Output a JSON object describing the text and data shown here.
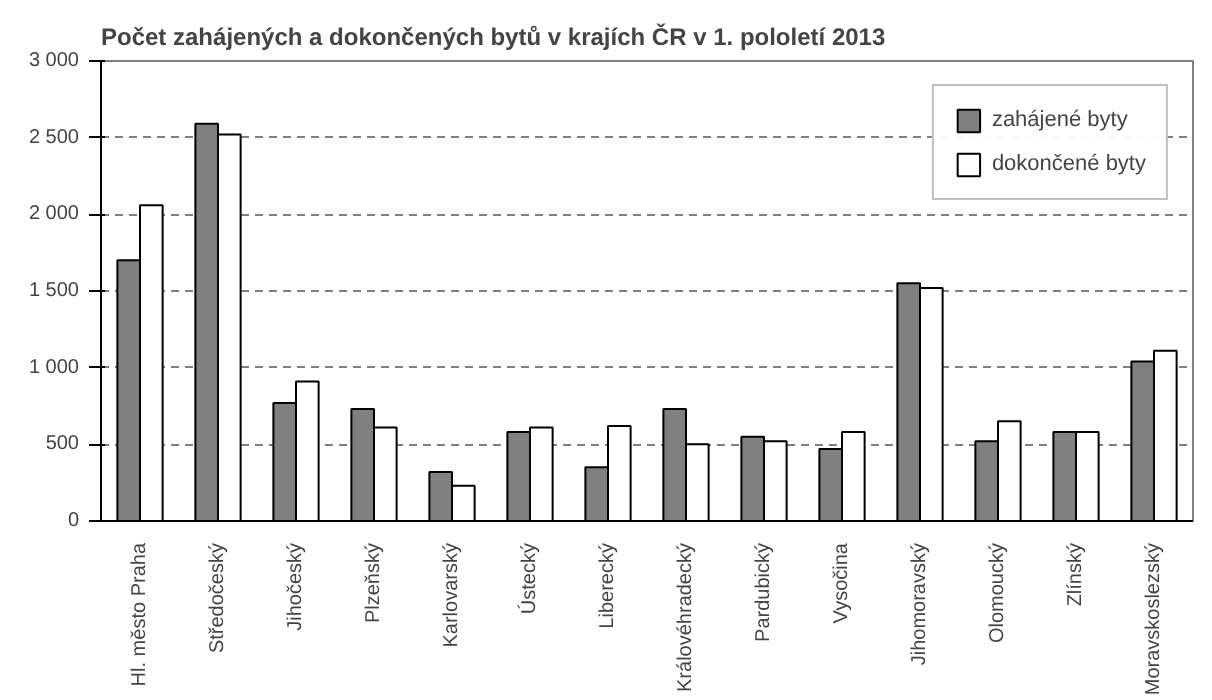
{
  "chart_data": {
    "type": "bar",
    "title": "Počet zahájených a dokončených bytů v krajích ČR v 1. pololetí 2013",
    "categories": [
      "Hl. město Praha",
      "Středočeský",
      "Jihočeský",
      "Plzeňský",
      "Karlovarský",
      "Ústecký",
      "Liberecký",
      "Královéhradecký",
      "Pardubický",
      "Vysočina",
      "Jihomoravský",
      "Olomoucký",
      "Zlínský",
      "Moravskoslezský"
    ],
    "series": [
      {
        "name": "zahájené byty",
        "color": "#808080",
        "values": [
          1700,
          2590,
          770,
          730,
          320,
          580,
          350,
          730,
          550,
          470,
          1550,
          520,
          580,
          1040
        ]
      },
      {
        "name": "dokončené byty",
        "color": "#ffffff",
        "values": [
          2060,
          2520,
          910,
          610,
          230,
          610,
          620,
          500,
          520,
          580,
          1520,
          650,
          580,
          1110
        ]
      }
    ],
    "ylim": [
      0,
      3000
    ],
    "yticks": [
      0,
      {
        "value": 500,
        "label": "500"
      },
      {
        "value": 1000,
        "label": "1 000"
      },
      {
        "value": 1500,
        "label": "1 500"
      },
      {
        "value": 2000,
        "label": "2 000"
      },
      {
        "value": 2500,
        "label": "2 500"
      },
      {
        "value": 3000,
        "label": "3 000"
      }
    ],
    "grid": "y",
    "legend": "top right"
  }
}
